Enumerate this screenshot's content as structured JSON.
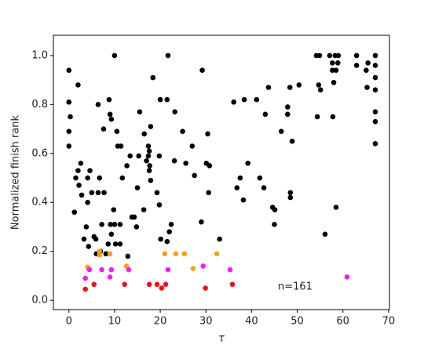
{
  "chart_data": {
    "type": "scatter",
    "xlabel": "τ",
    "ylabel": "Normalized finish rank",
    "annotation": "n=161",
    "xlim": [
      -3.4,
      70.2
    ],
    "ylim": [
      -0.038,
      1.083
    ],
    "xticks": [
      0,
      10,
      20,
      30,
      40,
      50,
      60,
      70
    ],
    "yticks": [
      {
        "value": 0,
        "label": "0.0"
      },
      {
        "value": 0.2,
        "label": "0.2"
      },
      {
        "value": 0.4,
        "label": "0.4"
      },
      {
        "value": 0.6,
        "label": "0.6"
      },
      {
        "value": 0.8,
        "label": "0.8"
      },
      {
        "value": 1,
        "label": "1.0"
      }
    ],
    "grid": false,
    "series": [
      {
        "color": "#000000",
        "x": [
          0,
          0,
          0.3,
          0,
          0,
          2,
          1.2,
          1.5,
          2,
          2.6,
          2.2,
          2.8,
          3.3,
          3.8,
          4.1,
          4.1,
          4.6,
          5,
          4.3,
          5.5,
          5.9,
          6,
          6.4,
          6.4,
          6.7,
          6.9,
          7.6,
          7.7,
          8.1,
          7.2,
          8.6,
          8.8,
          9,
          9.1,
          9.3,
          9.3,
          9.8,
          10,
          10.2,
          10,
          10.5,
          10.7,
          11.2,
          11.2,
          11.4,
          11.7,
          12.7,
          12.9,
          13.4,
          13.8,
          14.3,
          14.8,
          15,
          15.3,
          15.5,
          16.4,
          16.5,
          17,
          17.4,
          17.6,
          17.4,
          17.6,
          17.7,
          17.9,
          17.9,
          18.4,
          19.3,
          19.8,
          20,
          20.1,
          19.8,
          21.5,
          21.5,
          21.7,
          22,
          22.4,
          23.1,
          23.2,
          25.6,
          24.9,
          27,
          27.5,
          29,
          29.2,
          30.1,
          30.4,
          30.6,
          30.8,
          33,
          36.1,
          36.8,
          37.5,
          38.2,
          38.4,
          39.2,
          41.1,
          41.8,
          42.7,
          43,
          43.7,
          44.6,
          45,
          45.1,
          46.5,
          47.9,
          47.9,
          48.4,
          48.9,
          48.5,
          48.5,
          50.4,
          54.2,
          54.9,
          54.4,
          54.7,
          55.1,
          56.1,
          57.1,
          57.8,
          57.7,
          57.7,
          58,
          58.3,
          58.5,
          58.9,
          58.5,
          59,
          63,
          63,
          65.1,
          65.3,
          67.1,
          67.1,
          67.1,
          67.1,
          67.1,
          67.1,
          67.1,
          65.5
        ],
        "y": [
          0.94,
          0.81,
          0.75,
          0.69,
          0.63,
          0.88,
          0.36,
          0.5,
          0.53,
          0.56,
          0.47,
          0.43,
          0.25,
          0.3,
          0.4,
          0.5,
          0.53,
          0.44,
          0.22,
          0.26,
          0.25,
          0.19,
          0.44,
          0.8,
          0.5,
          0.2,
          0.7,
          0.44,
          0.19,
          0.31,
          0.23,
          0.82,
          0.76,
          0.31,
          0.27,
          0.74,
          0.37,
          1,
          0.23,
          0.31,
          0.69,
          0.63,
          0.23,
          0.31,
          0.63,
          0.5,
          0.55,
          0.18,
          0.59,
          0.34,
          0.34,
          0.3,
          0.46,
          0.59,
          0.77,
          0.37,
          0.68,
          0.57,
          0.63,
          0.61,
          0.59,
          0.53,
          0.55,
          0.49,
          0.71,
          0.91,
          0.44,
          0.39,
          0.82,
          0.25,
          0.59,
          0.24,
          0.82,
          1,
          0.28,
          0.31,
          0.57,
          0.77,
          0.56,
          0.69,
          0.63,
          0.51,
          0.32,
          0.94,
          0.56,
          0.68,
          0.44,
          0.55,
          0.25,
          0.81,
          0.46,
          0.5,
          0.41,
          0.82,
          0.56,
          0.82,
          0.5,
          0.46,
          0.76,
          0.87,
          0.38,
          0.31,
          0.37,
          0.69,
          0.76,
          0.79,
          0.87,
          0.65,
          0.44,
          0.42,
          0.88,
          1,
          1,
          0.75,
          0.88,
          0.86,
          0.27,
          1,
          0.75,
          0.97,
          0.94,
          0.89,
          1,
          0.94,
          0.97,
          0.38,
          1,
          1,
          0.96,
          0.94,
          0.87,
          1,
          0.96,
          0.91,
          0.86,
          0.77,
          0.73,
          0.64,
          0.97
        ]
      },
      {
        "color": "#f5a01a",
        "x": [
          4.1,
          6.7,
          6.7,
          9,
          12.6,
          21,
          23.4,
          25.3,
          27.2,
          32.4
        ],
        "y": [
          0.135,
          0.2,
          0.185,
          0.19,
          0.14,
          0.19,
          0.19,
          0.19,
          0.13,
          0.19
        ]
      },
      {
        "color": "#ee22ee",
        "x": [
          3.6,
          4.5,
          7.2,
          9,
          9.3,
          13.1,
          21.7,
          29.4,
          35.3,
          60.9
        ],
        "y": [
          0.09,
          0.125,
          0.125,
          0.095,
          0.125,
          0.125,
          0.125,
          0.14,
          0.125,
          0.095
        ]
      },
      {
        "color": "#e8141c",
        "x": [
          3.6,
          5.5,
          12.2,
          17.6,
          19.3,
          20.3,
          21.2,
          29.9,
          35.8
        ],
        "y": [
          0.045,
          0.065,
          0.065,
          0.065,
          0.065,
          0.05,
          0.065,
          0.05,
          0.065
        ]
      }
    ]
  }
}
